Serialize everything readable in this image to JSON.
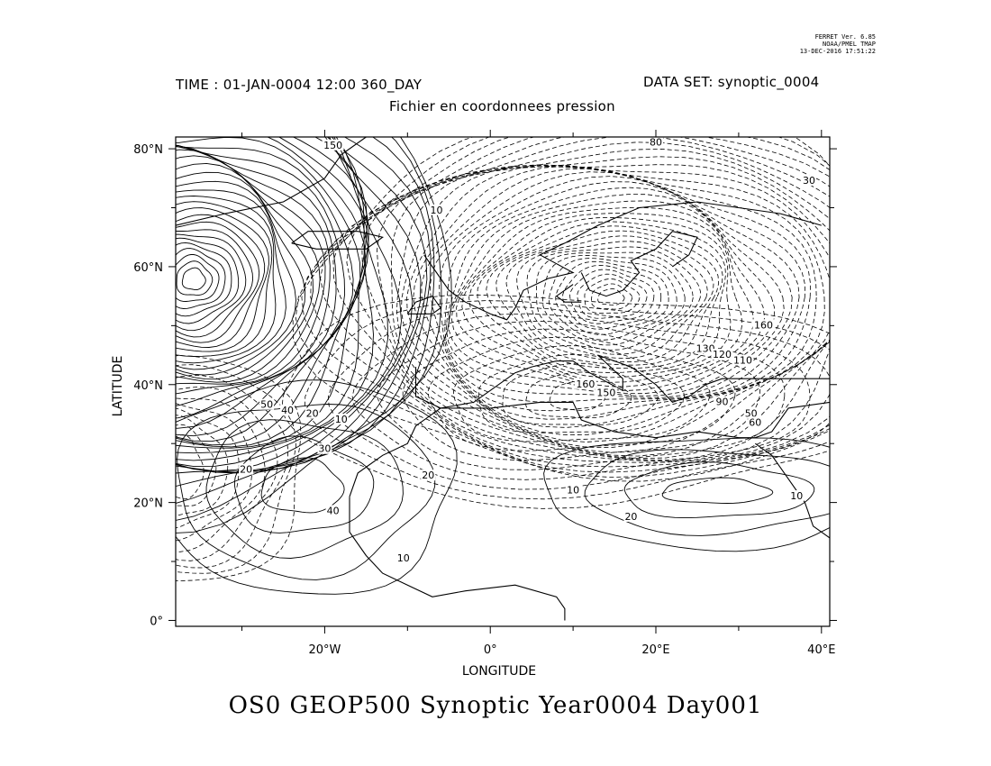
{
  "header": {
    "ferret_lines": [
      "FERRET Ver. 6.85",
      "NOAA/PMEL TMAP",
      "13-DEC-2016 17:51:22"
    ],
    "time_label": "TIME : 01-JAN-0004 12:00 360_DAY",
    "dataset_label": "DATA SET: synoptic_0004",
    "subtitle": "Fichier en coordonnees pression"
  },
  "map": {
    "lon_range": [
      -38,
      41
    ],
    "lat_range": [
      -1,
      82
    ],
    "y_ticks": [
      {
        "value": 0,
        "label": "0°"
      },
      {
        "value": 20,
        "label": "20°N"
      },
      {
        "value": 40,
        "label": "40°N"
      },
      {
        "value": 60,
        "label": "60°N"
      },
      {
        "value": 80,
        "label": "80°N"
      }
    ],
    "x_ticks": [
      {
        "value": -20,
        "label": "20°W"
      },
      {
        "value": 0,
        "label": "0°"
      },
      {
        "value": 20,
        "label": "20°E"
      },
      {
        "value": 40,
        "label": "40°E"
      }
    ],
    "minor_x": [
      -30,
      -10,
      10,
      30
    ],
    "minor_y": [
      10,
      30,
      50,
      70
    ],
    "xlabel": "LONGITUDE",
    "ylabel": "LATITUDE",
    "contour_labels": [
      {
        "text": "150",
        "lon": -19,
        "lat": 80.5
      },
      {
        "text": "80",
        "lon": 20,
        "lat": 81
      },
      {
        "text": "30",
        "lon": 38.5,
        "lat": 74.5
      },
      {
        "text": "10",
        "lon": -6.5,
        "lat": 69.5
      },
      {
        "text": "160",
        "lon": 33,
        "lat": 50
      },
      {
        "text": "130",
        "lon": 26,
        "lat": 46
      },
      {
        "text": "120",
        "lon": 28,
        "lat": 45
      },
      {
        "text": "110",
        "lon": 30.5,
        "lat": 44
      },
      {
        "text": "160",
        "lon": 11.5,
        "lat": 40
      },
      {
        "text": "150",
        "lon": 14,
        "lat": 38.5
      },
      {
        "text": "90",
        "lon": 28,
        "lat": 37
      },
      {
        "text": "50",
        "lon": 31.5,
        "lat": 35
      },
      {
        "text": "60",
        "lon": 32,
        "lat": 33.5
      },
      {
        "text": "50",
        "lon": -27,
        "lat": 36.5
      },
      {
        "text": "40",
        "lon": -24.5,
        "lat": 35.5
      },
      {
        "text": "20",
        "lon": -21.5,
        "lat": 35
      },
      {
        "text": "10",
        "lon": -18,
        "lat": 34
      },
      {
        "text": "30",
        "lon": -20,
        "lat": 29
      },
      {
        "text": "20",
        "lon": -7.5,
        "lat": 24.5
      },
      {
        "text": "40",
        "lon": -19,
        "lat": 18.5
      },
      {
        "text": "20",
        "lon": -29.5,
        "lat": 25.5
      },
      {
        "text": "10",
        "lon": -10.5,
        "lat": 10.5
      },
      {
        "text": "10",
        "lon": 10,
        "lat": 22
      },
      {
        "text": "20",
        "lon": 17,
        "lat": 17.5
      },
      {
        "text": "10",
        "lon": 37,
        "lat": 21
      }
    ]
  },
  "footer": {
    "title": "OS0 GEOP500 Synoptic Year0004 Day001"
  }
}
